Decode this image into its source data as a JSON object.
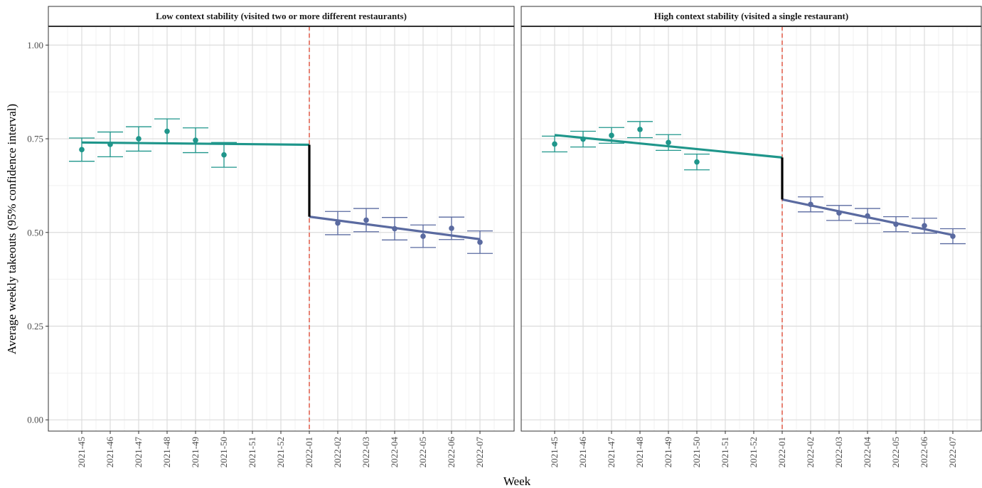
{
  "chart_data": {
    "type": "line",
    "xlabel": "Week",
    "ylabel": "Average weekly takeouts (95% confidence interval)",
    "categories": [
      "2021-45",
      "2021-46",
      "2021-47",
      "2021-48",
      "2021-49",
      "2021-50",
      "2021-51",
      "2021-52",
      "2022-01",
      "2022-02",
      "2022-03",
      "2022-04",
      "2022-05",
      "2022-06",
      "2022-07"
    ],
    "ylim": [
      -0.03,
      1.05
    ],
    "yticks": [
      0.0,
      0.25,
      0.5,
      0.75,
      1.0
    ],
    "ytick_labels": [
      "0.00",
      "0.25",
      "0.50",
      "0.75",
      "1.00"
    ],
    "intervention_week": "2022-01",
    "grid": true,
    "legend": "none",
    "colors": {
      "pre": "#1f968b",
      "post": "#5a6aa0",
      "jump": "#000000",
      "intervention_line": "#e0503c",
      "panel_border": "#333333",
      "strip_fill": "#ffffff",
      "grid_major": "#dcdcdc",
      "grid_minor": "#eeeeee"
    },
    "panels": [
      {
        "title": "Low context stability (visited two or more different restaurants)",
        "pre_fit": {
          "from_week": "2021-45",
          "to_week": "2022-01",
          "y_start": 0.74,
          "y_end": 0.734
        },
        "post_fit": {
          "from_week": "2022-01",
          "to_week": "2022-07",
          "y_start": 0.542,
          "y_end": 0.482
        },
        "points": [
          {
            "week": "2021-45",
            "y": 0.721,
            "lo": 0.69,
            "hi": 0.752,
            "phase": "pre"
          },
          {
            "week": "2021-46",
            "y": 0.735,
            "lo": 0.702,
            "hi": 0.768,
            "phase": "pre"
          },
          {
            "week": "2021-47",
            "y": 0.75,
            "lo": 0.717,
            "hi": 0.782,
            "phase": "pre"
          },
          {
            "week": "2021-48",
            "y": 0.77,
            "lo": 0.737,
            "hi": 0.803,
            "phase": "pre"
          },
          {
            "week": "2021-49",
            "y": 0.746,
            "lo": 0.713,
            "hi": 0.779,
            "phase": "pre"
          },
          {
            "week": "2021-50",
            "y": 0.707,
            "lo": 0.674,
            "hi": 0.74,
            "phase": "pre"
          },
          {
            "week": "2022-02",
            "y": 0.525,
            "lo": 0.494,
            "hi": 0.556,
            "phase": "post"
          },
          {
            "week": "2022-03",
            "y": 0.533,
            "lo": 0.502,
            "hi": 0.564,
            "phase": "post"
          },
          {
            "week": "2022-04",
            "y": 0.51,
            "lo": 0.48,
            "hi": 0.54,
            "phase": "post"
          },
          {
            "week": "2022-05",
            "y": 0.49,
            "lo": 0.46,
            "hi": 0.52,
            "phase": "post"
          },
          {
            "week": "2022-06",
            "y": 0.511,
            "lo": 0.481,
            "hi": 0.541,
            "phase": "post"
          },
          {
            "week": "2022-07",
            "y": 0.474,
            "lo": 0.444,
            "hi": 0.504,
            "phase": "post"
          }
        ]
      },
      {
        "title": "High context stability (visited a single restaurant)",
        "pre_fit": {
          "from_week": "2021-45",
          "to_week": "2022-01",
          "y_start": 0.76,
          "y_end": 0.7
        },
        "post_fit": {
          "from_week": "2022-01",
          "to_week": "2022-07",
          "y_start": 0.588,
          "y_end": 0.493
        },
        "points": [
          {
            "week": "2021-45",
            "y": 0.736,
            "lo": 0.715,
            "hi": 0.757,
            "phase": "pre"
          },
          {
            "week": "2021-46",
            "y": 0.749,
            "lo": 0.728,
            "hi": 0.77,
            "phase": "pre"
          },
          {
            "week": "2021-47",
            "y": 0.759,
            "lo": 0.738,
            "hi": 0.78,
            "phase": "pre"
          },
          {
            "week": "2021-48",
            "y": 0.775,
            "lo": 0.753,
            "hi": 0.796,
            "phase": "pre"
          },
          {
            "week": "2021-49",
            "y": 0.74,
            "lo": 0.719,
            "hi": 0.761,
            "phase": "pre"
          },
          {
            "week": "2021-50",
            "y": 0.688,
            "lo": 0.667,
            "hi": 0.709,
            "phase": "pre"
          },
          {
            "week": "2022-02",
            "y": 0.575,
            "lo": 0.555,
            "hi": 0.595,
            "phase": "post"
          },
          {
            "week": "2022-03",
            "y": 0.552,
            "lo": 0.532,
            "hi": 0.572,
            "phase": "post"
          },
          {
            "week": "2022-04",
            "y": 0.544,
            "lo": 0.524,
            "hi": 0.564,
            "phase": "post"
          },
          {
            "week": "2022-05",
            "y": 0.522,
            "lo": 0.502,
            "hi": 0.542,
            "phase": "post"
          },
          {
            "week": "2022-06",
            "y": 0.518,
            "lo": 0.498,
            "hi": 0.538,
            "phase": "post"
          },
          {
            "week": "2022-07",
            "y": 0.49,
            "lo": 0.47,
            "hi": 0.51,
            "phase": "post"
          }
        ]
      }
    ]
  }
}
